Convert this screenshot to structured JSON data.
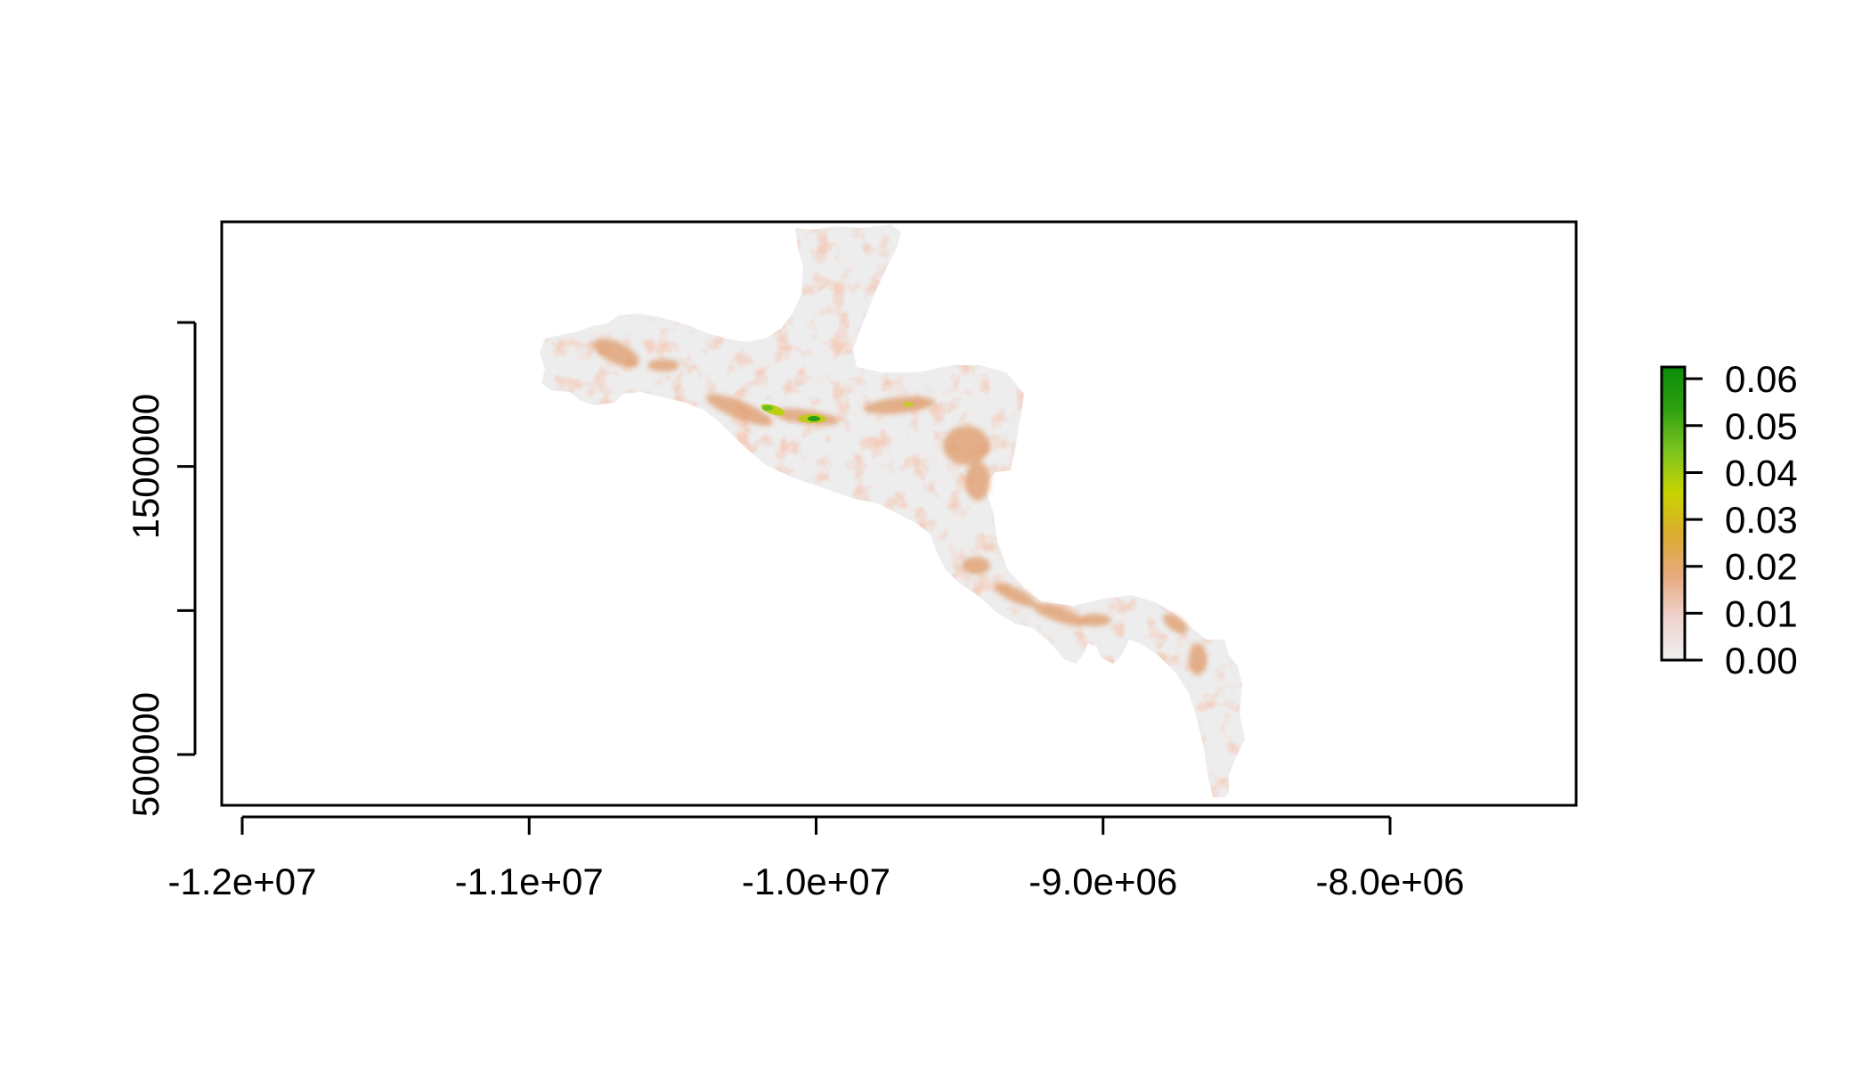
{
  "map": {
    "x_axis": {
      "ticks": [
        -12000000,
        -11000000,
        -10000000,
        -9000000,
        -8000000
      ],
      "tick_labels": [
        "-1.2e+07",
        "-1.1e+07",
        "-1.0e+07",
        "-9.0e+06",
        "-8.0e+06"
      ],
      "range": [
        -12070000,
        -7350000
      ]
    },
    "y_axis": {
      "ticks": [
        500000,
        1000000,
        1500000,
        2000000
      ],
      "tick_labels": [
        "500000",
        "",
        "1500000",
        ""
      ],
      "range": [
        320000,
        2350000
      ]
    },
    "legend": {
      "type": "continuous-colorbar",
      "placement": "right",
      "range": [
        0,
        0.0625
      ],
      "ticks": [
        0,
        0.01,
        0.02,
        0.03,
        0.04,
        0.05,
        0.06
      ],
      "tick_labels": [
        "0.00",
        "0.01",
        "0.02",
        "0.03",
        "0.04",
        "0.05",
        "0.06"
      ],
      "colors": [
        "#f0f0f0",
        "#efd3cf",
        "#e7aa80",
        "#dcab30",
        "#c8d400",
        "#7cc420",
        "#2ea010",
        "#0a8c0a"
      ]
    },
    "colors": {
      "background": "#ffffff",
      "frame": "#000000",
      "land_low": "#ededed",
      "land_mid": "#e8b99e",
      "land_high": "#2a9f12"
    }
  }
}
